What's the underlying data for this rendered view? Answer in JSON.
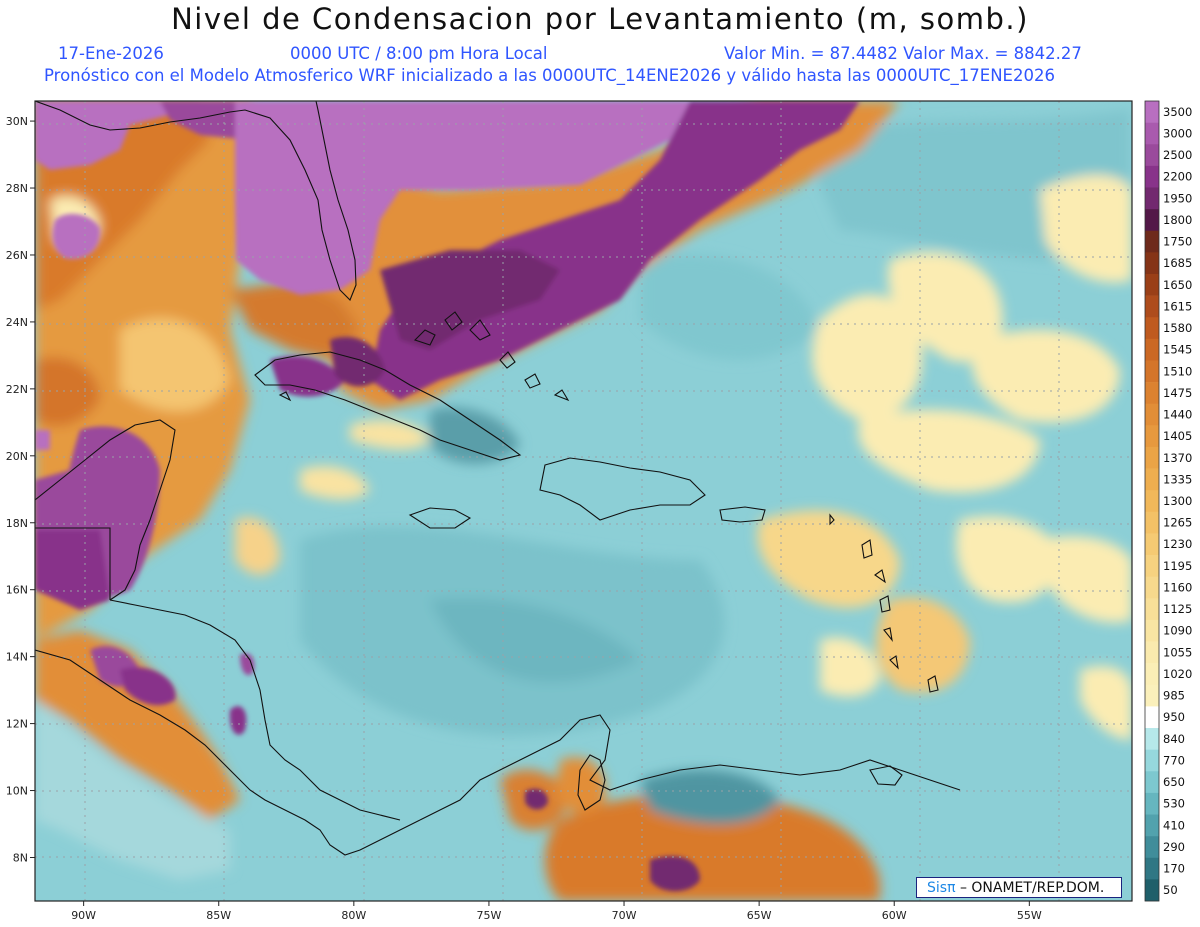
{
  "header": {
    "title": "Nivel de Condensacion por Levantamiento (m, somb.)",
    "date": "17-Ene-2026",
    "time": "0000 UTC / 8:00 pm Hora Local",
    "value_range": "Valor Min. = 87.4482  Valor Max. = 8842.27",
    "description": "Pronóstico con el Modelo Atmosferico WRF inicializado a las 0000UTC_14ENE2026 y válido hasta las  0000UTC_17ENE2026"
  },
  "axes": {
    "lat_labels": [
      "30N",
      "28N",
      "26N",
      "24N",
      "22N",
      "20N",
      "18N",
      "16N",
      "14N",
      "12N",
      "10N",
      "8N"
    ],
    "lat_values": [
      30,
      28,
      26,
      24,
      22,
      20,
      18,
      16,
      14,
      12,
      10,
      8
    ],
    "lon_labels": [
      "90W",
      "85W",
      "80W",
      "75W",
      "70W",
      "65W",
      "60W",
      "55W"
    ],
    "lon_values": [
      -90,
      -85,
      -80,
      -75,
      -70,
      -65,
      -60,
      -55
    ],
    "lat_range": [
      6.7,
      30.6
    ],
    "lon_range": [
      -91.8,
      -51.2
    ]
  },
  "legend": {
    "labels": [
      "3500",
      "3000",
      "2500",
      "2200",
      "1950",
      "1800",
      "1750",
      "1685",
      "1650",
      "1615",
      "1580",
      "1545",
      "1510",
      "1475",
      "1440",
      "1405",
      "1370",
      "1335",
      "1300",
      "1265",
      "1230",
      "1195",
      "1160",
      "1125",
      "1090",
      "1055",
      "1020",
      "985",
      "950",
      "840",
      "770",
      "650",
      "530",
      "410",
      "290",
      "170",
      "50"
    ],
    "colors": [
      "#b86fc0",
      "#a95aae",
      "#9a4a9c",
      "#88338a",
      "#72296f",
      "#531848",
      "#6e2a1b",
      "#853417",
      "#9a3f17",
      "#ae4c1c",
      "#bf5a1f",
      "#cb6824",
      "#d4752a",
      "#dc8230",
      "#e28e37",
      "#e7993e",
      "#eba446",
      "#eeae4f",
      "#f1b85a",
      "#f3c166",
      "#f5ca73",
      "#f6d280",
      "#f7d98d",
      "#f8df98",
      "#f9e5a3",
      "#faeaae",
      "#fbeeb6",
      "#fbf0bb",
      "#ffffff",
      "#b6e8ea",
      "#96d8dd",
      "#7dc8cf",
      "#66b6bf",
      "#52a2ad",
      "#408d9a",
      "#307784",
      "#1f5f6a"
    ]
  },
  "credit": {
    "logo": "Sisπ",
    "org": "– ONAMET/REP.DOM."
  }
}
